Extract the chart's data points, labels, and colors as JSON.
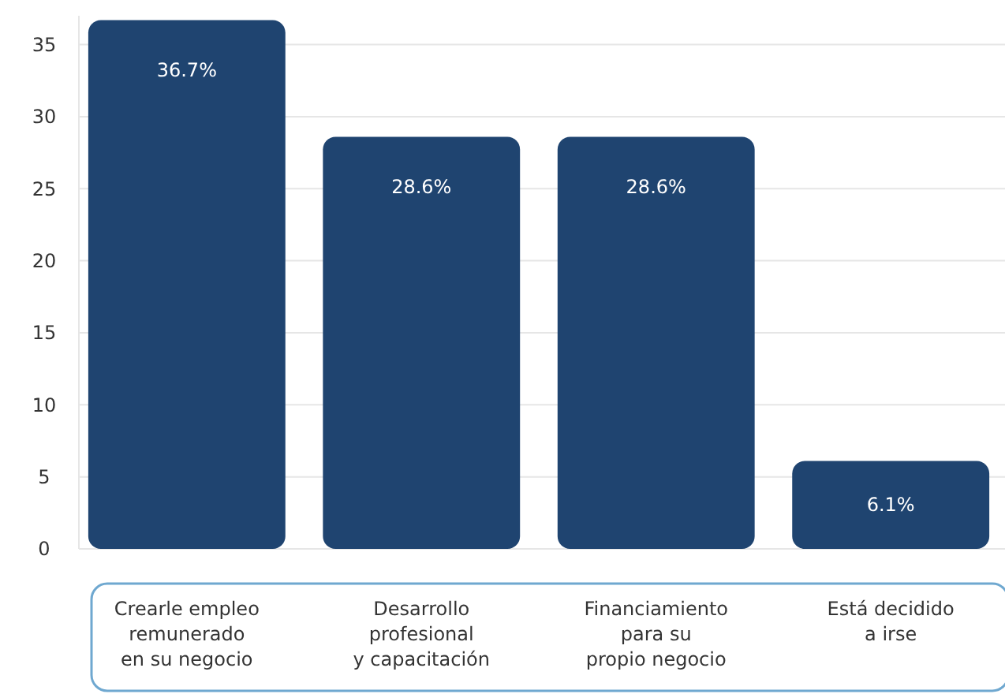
{
  "chart_data": {
    "type": "bar",
    "categories": [
      "Crearle empleo\nremunerado\nen su negocio",
      "Desarrollo\nprofesional\ny capacitación",
      "Financiamiento\npara su\npropio negocio",
      "Está decidido\na irse"
    ],
    "values": [
      36.7,
      28.6,
      28.6,
      6.1
    ],
    "value_labels": [
      "36.7%",
      "28.6%",
      "28.6%",
      "6.1%"
    ],
    "color": "#1f4470",
    "ylim": [
      0,
      37
    ],
    "yticks": [
      0,
      5,
      10,
      15,
      20,
      25,
      30,
      35
    ],
    "grid": "y"
  }
}
